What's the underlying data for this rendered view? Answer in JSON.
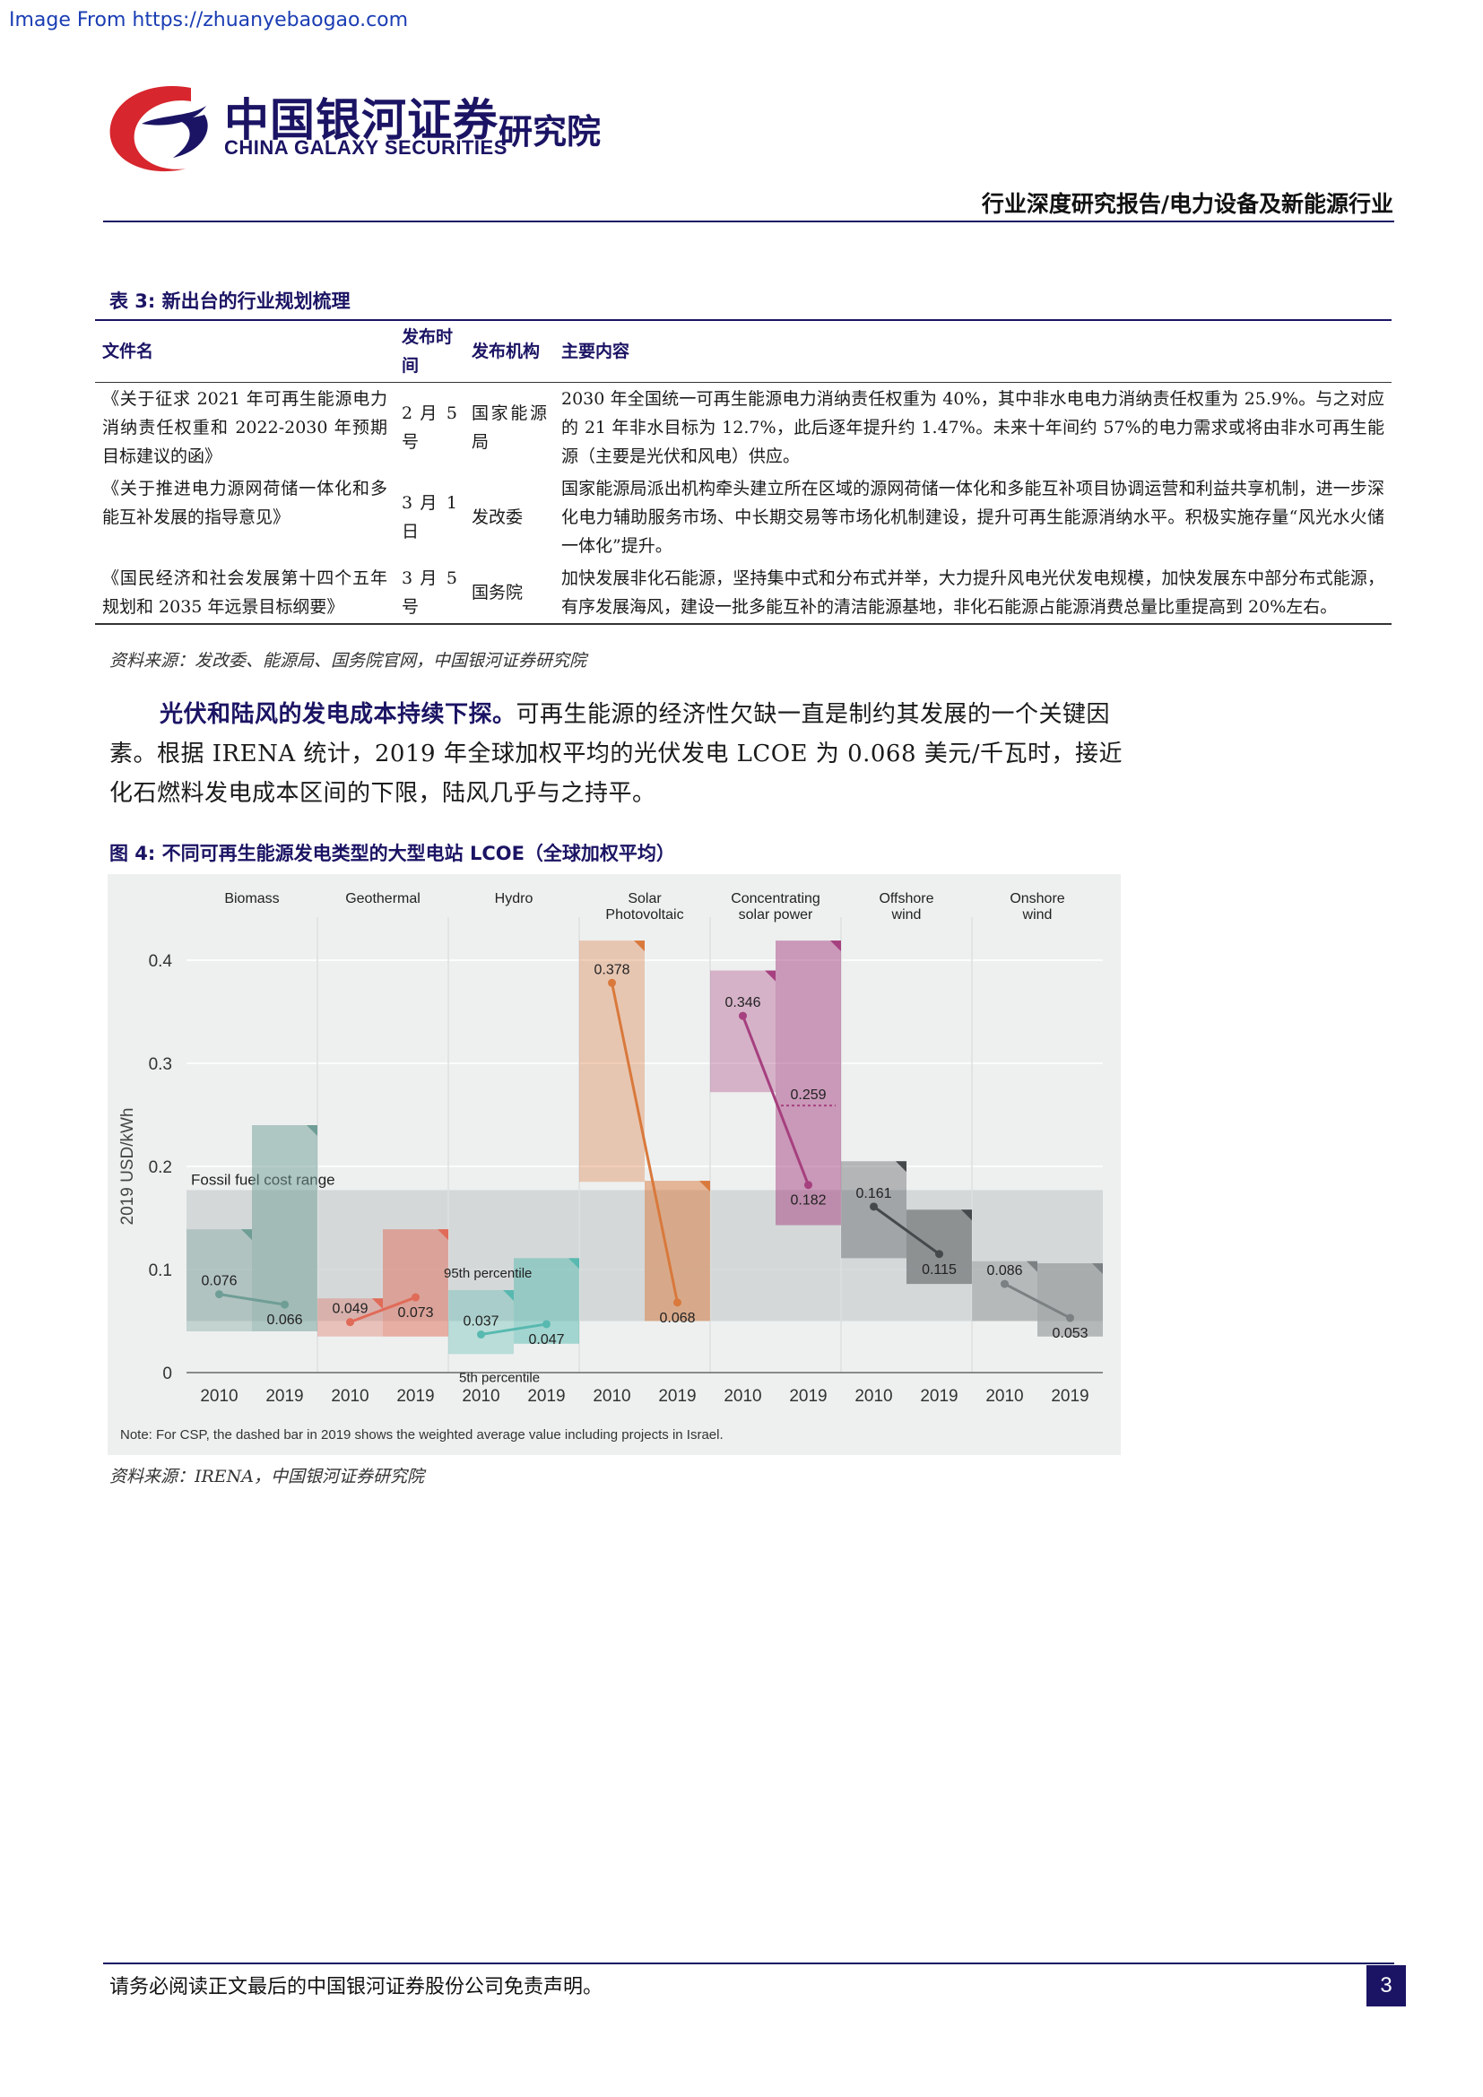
{
  "watermark": "Image From https://zhuanyebaogao.com",
  "header": {
    "brand_cn": "中国银河证券",
    "brand_en": "CHINA GALAXY SECURITIES",
    "brand_inst": "研究院",
    "report_title": "行业深度研究报告/电力设备及新能源行业",
    "brand_colors": {
      "navy": "#1b1464",
      "red": "#d7262d"
    }
  },
  "table3": {
    "caption": "表 3: 新出台的行业规划梳理",
    "headers": [
      "文件名",
      "发布时间",
      "发布机构",
      "主要内容"
    ],
    "rows": [
      {
        "doc": "《关于征求 2021 年可再生能源电力消纳责任权重和 2022-2030 年预期目标建议的函》",
        "date": "2 月 5 号",
        "org": "国家能源局",
        "content": "2030 年全国统一可再生能源电力消纳责任权重为 40%，其中非水电电力消纳责任权重为 25.9%。与之对应的 21 年非水目标为 12.7%，此后逐年提升约 1.47%。未来十年间约 57%的电力需求或将由非水可再生能源（主要是光伏和风电）供应。"
      },
      {
        "doc": "《关于推进电力源网荷储一体化和多能互补发展的指导意见》",
        "date": "3 月 1 日",
        "org": "发改委",
        "content": "国家能源局派出机构牵头建立所在区域的源网荷储一体化和多能互补项目协调运营和利益共享机制，进一步深化电力辅助服务市场、中长期交易等市场化机制建设，提升可再生能源消纳水平。积极实施存量“风光水火储一体化”提升。"
      },
      {
        "doc": "《国民经济和社会发展第十四个五年规划和 2035 年远景目标纲要》",
        "date": "3 月 5 号",
        "org": "国务院",
        "content": "加快发展非化石能源，坚持集中式和分布式并举，大力提升风电光伏发电规模，加快发展东中部分布式能源，有序发展海风，建设一批多能互补的清洁能源基地，非化石能源占能源消费总量比重提高到 20%左右。"
      }
    ],
    "source": "资料来源：发改委、能源局、国务院官网，中国银河证券研究院"
  },
  "paragraph": {
    "bold_lead": "光伏和陆风的发电成本持续下探。",
    "text": "可再生能源的经济性欠缺一直是制约其发展的一个关键因素。根据 IRENA 统计，2019 年全球加权平均的光伏发电 LCOE 为 0.068 美元/千瓦时，接近化石燃料发电成本区间的下限，陆风几乎与之持平。"
  },
  "figure4": {
    "caption": "图 4: 不同可再生能源发电类型的大型电站 LCOE（全球加权平均）",
    "note": "Note: For CSP, the dashed bar in 2019 shows the weighted average value including projects in Israel.",
    "source": "资料来源：IRENA，中国银河证券研究院",
    "fossil_label": "Fossil fuel cost range",
    "p95_label": "95th percentile",
    "p5_label": "5th percentile"
  },
  "chart_data": {
    "type": "range-dumbbell",
    "title": "",
    "ylabel": "2019 USD/kWh",
    "ylim": [
      0,
      0.4
    ],
    "yticks": [
      0,
      0.1,
      0.2,
      0.3,
      0.4
    ],
    "fossil_range": [
      0.05,
      0.177
    ],
    "years": [
      "2010",
      "2019"
    ],
    "series": [
      {
        "name": "Biomass",
        "color": "#6f9e96",
        "values": [
          0.076,
          0.066
        ],
        "ranges": [
          [
            0.04,
            0.139
          ],
          [
            0.04,
            0.24
          ]
        ]
      },
      {
        "name": "Geothermal",
        "color": "#e06b58",
        "values": [
          0.049,
          0.073
        ],
        "ranges": [
          [
            0.035,
            0.072
          ],
          [
            0.035,
            0.139
          ]
        ]
      },
      {
        "name": "Hydro",
        "color": "#58b9b0",
        "values": [
          0.037,
          0.047
        ],
        "ranges": [
          [
            0.018,
            0.08
          ],
          [
            0.028,
            0.111
          ]
        ]
      },
      {
        "name": "Solar Photovoltaic",
        "color": "#d9793c",
        "values": [
          0.378,
          0.068
        ],
        "ranges": [
          [
            0.185,
            0.419
          ],
          [
            0.05,
            0.186
          ]
        ]
      },
      {
        "name": "Concentrating solar power",
        "color": "#a6407f",
        "values": [
          0.346,
          0.182
        ],
        "ranges": [
          [
            0.272,
            0.39
          ],
          [
            0.143,
            0.419
          ]
        ],
        "dashed_2019": 0.259
      },
      {
        "name": "Offshore wind",
        "color": "#45494c",
        "values": [
          0.161,
          0.115
        ],
        "ranges": [
          [
            0.111,
            0.205
          ],
          [
            0.086,
            0.158
          ]
        ]
      },
      {
        "name": "Onshore wind",
        "color": "#7b8082",
        "values": [
          0.086,
          0.053
        ],
        "ranges": [
          [
            0.05,
            0.108
          ],
          [
            0.035,
            0.106
          ]
        ]
      }
    ]
  },
  "footer": {
    "disclaimer": "请务必阅读正文最后的中国银河证券股份公司免责声明。",
    "page": "3"
  }
}
